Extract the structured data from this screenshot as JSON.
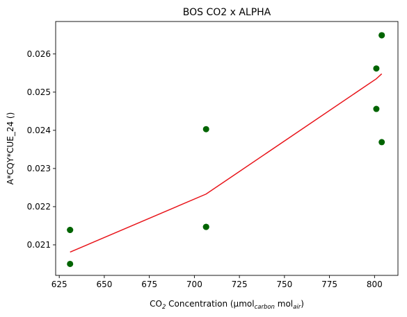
{
  "chart_data": {
    "type": "scatter",
    "title": "BOS CO2 x ALPHA",
    "xlabel": {
      "pre": "CO",
      "sub1": "2",
      "mid": " Concentration (µmol",
      "sub2": "carbon",
      "mid2": " mol",
      "sub3": "air",
      "post": ")"
    },
    "ylabel": "A*CQY*CUE_24 ()",
    "xlim": [
      623,
      813
    ],
    "ylim": [
      0.0202,
      0.02685
    ],
    "xticks": [
      625,
      650,
      675,
      700,
      725,
      750,
      775,
      800
    ],
    "yticks": [
      0.021,
      0.022,
      0.023,
      0.024,
      0.025,
      0.026
    ],
    "grid": false,
    "scatter": {
      "color": "#006400",
      "x": [
        631,
        631,
        631,
        706.5,
        706.5,
        706.5,
        801,
        801,
        804,
        804,
        804
      ],
      "y": [
        0.02139,
        0.02139,
        0.0205,
        0.02403,
        0.02147,
        0.02147,
        0.02562,
        0.02456,
        0.02649,
        0.02649,
        0.02369
      ]
    },
    "fit_line": {
      "color": "#e8141a",
      "x": [
        631,
        706.5,
        801,
        804
      ],
      "y": [
        0.02081,
        0.02233,
        0.02535,
        0.02548
      ]
    }
  }
}
